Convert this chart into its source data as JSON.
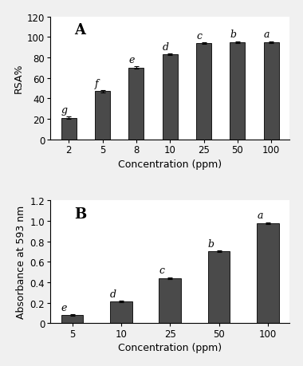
{
  "chart_A": {
    "label": "A",
    "x_labels": [
      "2",
      "5",
      "8",
      "10",
      "25",
      "50",
      "100"
    ],
    "values": [
      21,
      47,
      70,
      83,
      94,
      95,
      95
    ],
    "errors": [
      1.2,
      1.0,
      1.0,
      1.0,
      0.8,
      0.8,
      0.8
    ],
    "sig_labels": [
      "g",
      "f",
      "e",
      "d",
      "c",
      "b",
      "a"
    ],
    "ylabel": "RSA%",
    "xlabel": "Concentration (ppm)",
    "ylim": [
      0,
      120
    ],
    "yticks": [
      0,
      20,
      40,
      60,
      80,
      100,
      120
    ],
    "bar_color": "#4a4a4a"
  },
  "chart_B": {
    "label": "B",
    "x_labels": [
      "5",
      "10",
      "25",
      "50",
      "100"
    ],
    "values": [
      0.08,
      0.21,
      0.44,
      0.7,
      0.98
    ],
    "errors": [
      0.008,
      0.008,
      0.008,
      0.008,
      0.008
    ],
    "sig_labels": [
      "e",
      "d",
      "c",
      "b",
      "a"
    ],
    "ylabel": "Absorbance at 593 nm",
    "xlabel": "Concentration (ppm)",
    "ylim": [
      0,
      1.2
    ],
    "yticks": [
      0.0,
      0.2,
      0.4,
      0.6,
      0.8,
      1.0,
      1.2
    ],
    "bar_color": "#4a4a4a"
  },
  "fig_width": 3.8,
  "fig_height": 4.6,
  "dpi": 100,
  "background_color": "#f0f0f0",
  "plot_bg_color": "#ffffff",
  "label_fontsize": 9,
  "tick_fontsize": 8.5,
  "sig_fontsize": 9,
  "panel_label_fontsize": 13,
  "bar_width": 0.45
}
